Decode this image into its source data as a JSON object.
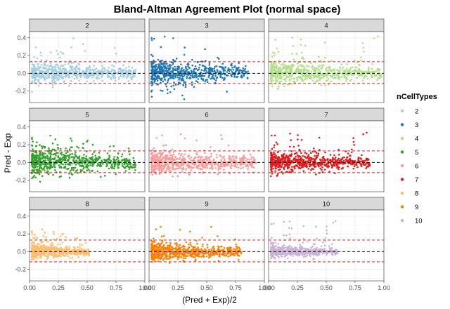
{
  "chart_data": {
    "type": "scatter",
    "title": "Bland-Altman Agreement Plot (normal space)",
    "xlabel": "(Pred + Exp)/2",
    "ylabel": "Pred - Exp",
    "xlim": [
      0.0,
      1.0
    ],
    "ylim": [
      -0.33,
      0.47
    ],
    "x_ticks": [
      0.0,
      0.25,
      0.5,
      0.75,
      1.0
    ],
    "x_tick_labels": [
      "0.00",
      "0.25",
      "0.50",
      "0.75",
      "1.00"
    ],
    "y_ticks": [
      -0.2,
      0.0,
      0.2,
      0.4
    ],
    "y_tick_labels": [
      "-0.2",
      "0.0",
      "0.2",
      "0.4"
    ],
    "mean_line": 0.0,
    "limits_of_agreement": [
      -0.115,
      0.13
    ],
    "grid": true,
    "legend_title": "nCellTypes",
    "legend_position": "right",
    "facets": [
      {
        "label": "2",
        "color": "#a6cee3",
        "x_range": [
          0.02,
          0.92
        ],
        "y_spread": 0.06,
        "outlier_max": 0.4,
        "outlier_min": -0.17
      },
      {
        "label": "3",
        "color": "#1f78b4",
        "x_range": [
          0.02,
          0.86
        ],
        "y_spread": 0.08,
        "outlier_max": 0.42,
        "outlier_min": -0.3
      },
      {
        "label": "4",
        "color": "#b2df8a",
        "x_range": [
          0.02,
          0.98
        ],
        "y_spread": 0.07,
        "outlier_max": 0.42,
        "outlier_min": -0.15
      },
      {
        "label": "5",
        "color": "#33a02c",
        "x_range": [
          0.02,
          0.92
        ],
        "y_spread": 0.08,
        "outlier_max": 0.34,
        "outlier_min": -0.22
      },
      {
        "label": "6",
        "color": "#fb9a99",
        "x_range": [
          0.02,
          0.93
        ],
        "y_spread": 0.06,
        "outlier_max": 0.33,
        "outlier_min": -0.16
      },
      {
        "label": "7",
        "color": "#e31a1c",
        "x_range": [
          0.02,
          0.88
        ],
        "y_spread": 0.06,
        "outlier_max": 0.34,
        "outlier_min": -0.15
      },
      {
        "label": "8",
        "color": "#fdbf6f",
        "x_range": [
          0.02,
          0.52
        ],
        "y_spread": 0.04,
        "outlier_max": 0.28,
        "outlier_min": -0.1
      },
      {
        "label": "9",
        "color": "#ff7f00",
        "x_range": [
          0.02,
          0.8
        ],
        "y_spread": 0.05,
        "outlier_max": 0.3,
        "outlier_min": -0.13
      },
      {
        "label": "10",
        "color": "#cab2d6",
        "x_range": [
          0.02,
          0.6
        ],
        "y_spread": 0.03,
        "outlier_max": 0.35,
        "outlier_min": -0.1
      }
    ],
    "legend": [
      {
        "label": "2",
        "color": "#a6cee3"
      },
      {
        "label": "3",
        "color": "#1f78b4"
      },
      {
        "label": "4",
        "color": "#b2df8a"
      },
      {
        "label": "5",
        "color": "#33a02c"
      },
      {
        "label": "6",
        "color": "#fb9a99"
      },
      {
        "label": "7",
        "color": "#e31a1c"
      },
      {
        "label": "8",
        "color": "#fdbf6f"
      },
      {
        "label": "9",
        "color": "#ff7f00"
      },
      {
        "label": "10",
        "color": "#cab2d6"
      }
    ]
  }
}
